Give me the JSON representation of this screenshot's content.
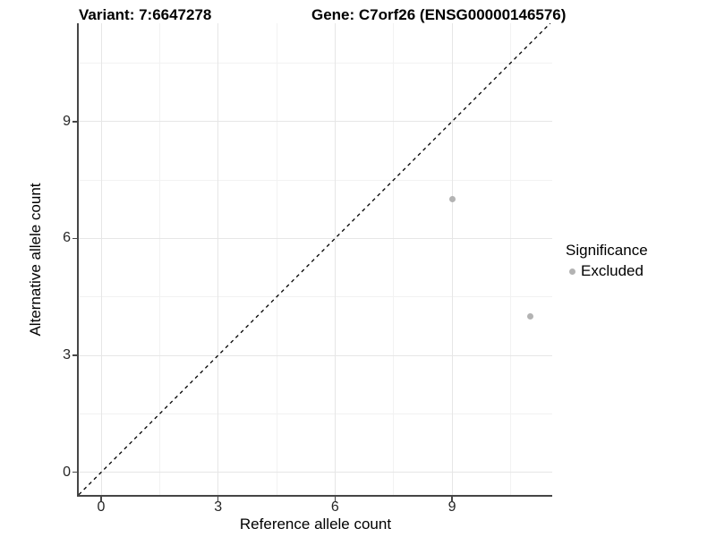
{
  "titles": {
    "variant": "Variant: 7:6647278",
    "gene": "Gene: C7orf26 (ENSG00000146576)"
  },
  "axes": {
    "x": {
      "label": "Reference allele count",
      "tick_labels": [
        "0",
        "3",
        "6",
        "9"
      ]
    },
    "y": {
      "label": "Alternative allele count",
      "tick_labels": [
        "0",
        "3",
        "6",
        "9"
      ]
    }
  },
  "legend": {
    "title": "Significance",
    "items": [
      {
        "label": "Excluded",
        "color": "#b3b3b3"
      }
    ]
  },
  "colors": {
    "background": "#ffffff",
    "axis_line": "#464646",
    "tick_label": "#262626",
    "grid_major": "#e6e6e6",
    "grid_minor": "#f2f2f2",
    "point": "#b3b3b3",
    "identity_line": "#000000"
  },
  "chart_data": {
    "type": "scatter",
    "title": "Variant: 7:6647278 | Gene: C7orf26 (ENSG00000146576)",
    "xlabel": "Reference allele count",
    "ylabel": "Alternative allele count",
    "series": [
      {
        "name": "Excluded",
        "color": "#b3b3b3",
        "points": [
          {
            "x": 9,
            "y": 7
          },
          {
            "x": 11,
            "y": 4
          }
        ]
      }
    ],
    "identity_line": {
      "equation": "y = x",
      "style": "dashed",
      "color": "#000000"
    },
    "x_breaks": [
      0,
      3,
      6,
      9
    ],
    "y_breaks": [
      0,
      3,
      6,
      9
    ],
    "x_minor_breaks": [
      1.5,
      4.5,
      7.5,
      10.5
    ],
    "y_minor_breaks": [
      1.5,
      4.5,
      7.5,
      10.5
    ],
    "xlim": [
      -0.574,
      11.57
    ],
    "ylim": [
      -0.58,
      11.52
    ],
    "grid": true,
    "legend_position": "right"
  }
}
